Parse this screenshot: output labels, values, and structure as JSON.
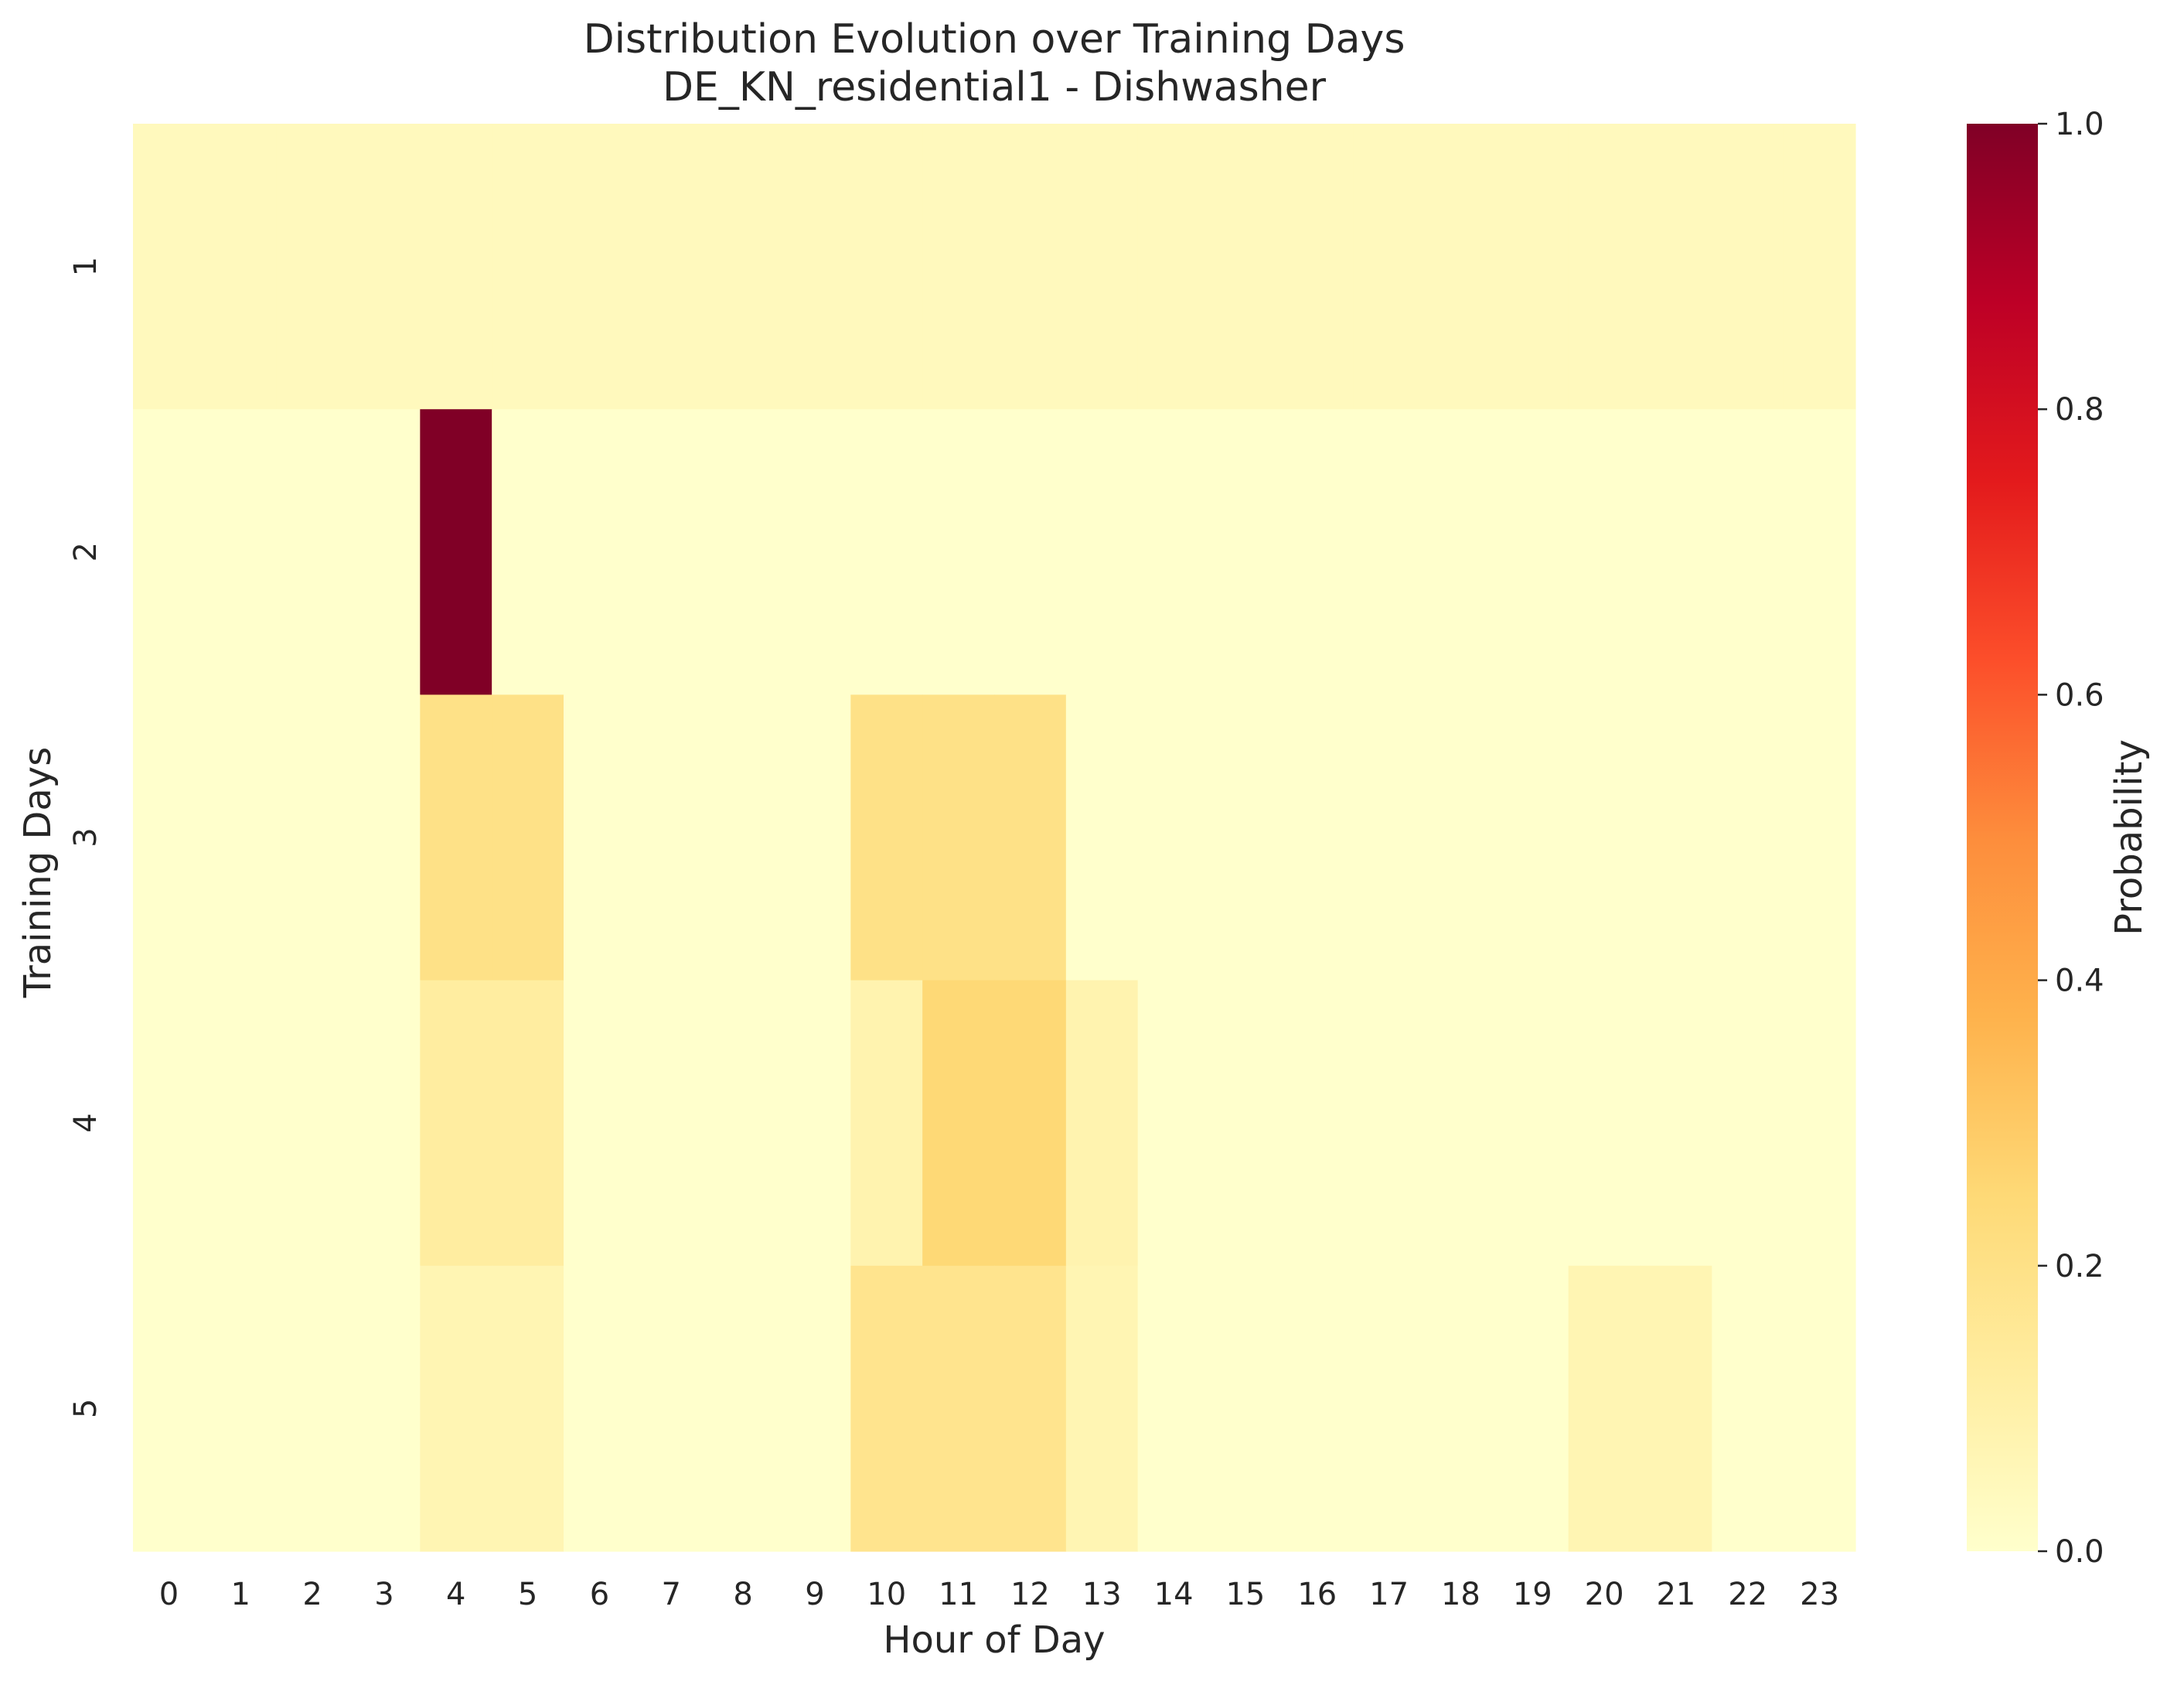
{
  "chart_data": {
    "type": "heatmap",
    "title": "Distribution Evolution over Training Days",
    "subtitle": "DE_KN_residential1 - Dishwasher",
    "xlabel": "Hour of Day",
    "ylabel": "Training Days",
    "x": [
      "0",
      "1",
      "2",
      "3",
      "4",
      "5",
      "6",
      "7",
      "8",
      "9",
      "10",
      "11",
      "12",
      "13",
      "14",
      "15",
      "16",
      "17",
      "18",
      "19",
      "20",
      "21",
      "22",
      "23"
    ],
    "y": [
      "1",
      "2",
      "3",
      "4",
      "5"
    ],
    "values": [
      [
        0.0417,
        0.0417,
        0.0417,
        0.0417,
        0.0417,
        0.0417,
        0.0417,
        0.0417,
        0.0417,
        0.0417,
        0.0417,
        0.0417,
        0.0417,
        0.0417,
        0.0417,
        0.0417,
        0.0417,
        0.0417,
        0.0417,
        0.0417,
        0.0417,
        0.0417,
        0.0417,
        0.0417
      ],
      [
        0,
        0,
        0,
        0,
        1.0,
        0,
        0,
        0,
        0,
        0,
        0,
        0,
        0,
        0,
        0,
        0,
        0,
        0,
        0,
        0,
        0,
        0,
        0,
        0
      ],
      [
        0,
        0,
        0,
        0,
        0.2,
        0.2,
        0,
        0,
        0,
        0,
        0.2,
        0.2,
        0.2,
        0,
        0,
        0,
        0,
        0,
        0,
        0,
        0,
        0,
        0,
        0
      ],
      [
        0,
        0,
        0,
        0,
        0.125,
        0.125,
        0,
        0,
        0,
        0,
        0.0833,
        0.25,
        0.25,
        0.0833,
        0,
        0,
        0,
        0,
        0,
        0,
        0,
        0,
        0,
        0
      ],
      [
        0,
        0,
        0,
        0,
        0.0714,
        0.0714,
        0,
        0,
        0,
        0,
        0.1786,
        0.1786,
        0.1786,
        0.0714,
        0,
        0,
        0,
        0,
        0,
        0,
        0.0714,
        0.0714,
        0,
        0
      ]
    ],
    "colorbar": {
      "label": "Probability",
      "range": [
        0,
        1
      ],
      "ticks": [
        "0.0",
        "0.2",
        "0.4",
        "0.6",
        "0.8",
        "1.0"
      ],
      "colormap": "YlOrRd"
    }
  }
}
